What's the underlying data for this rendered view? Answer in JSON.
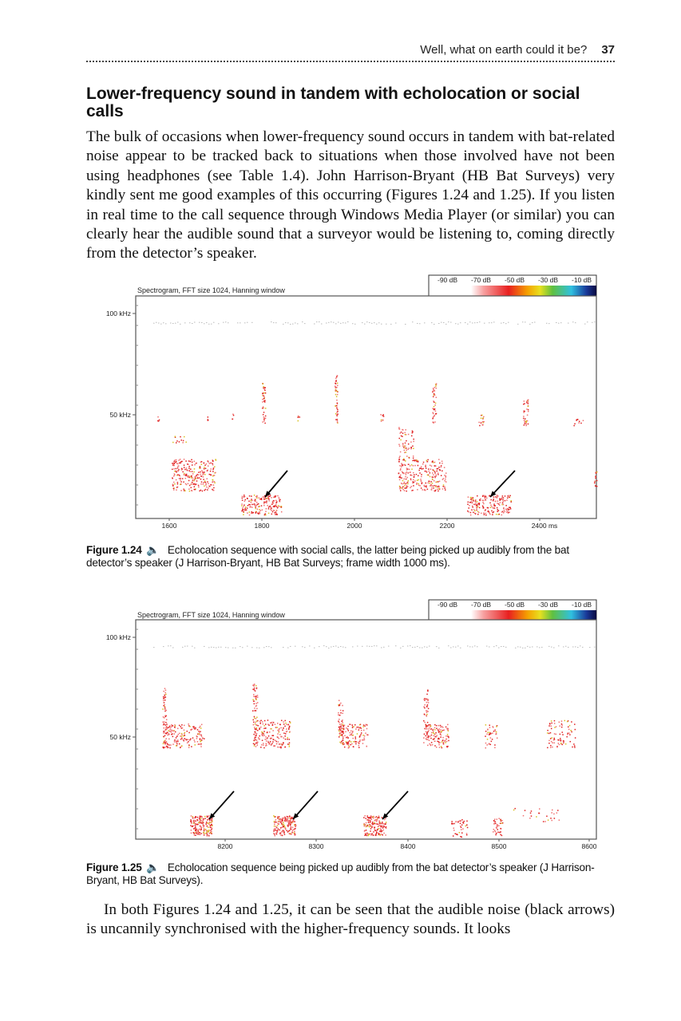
{
  "running_head": {
    "title": "Well, what on earth could it be?",
    "page_number": "37"
  },
  "section_heading": "Lower-frequency sound in tandem with echolocation or social calls",
  "paragraph_1": "The bulk of occasions when lower-frequency sound occurs in tandem with bat-related noise appear to be tracked back to situations when those involved have not been using headphones (see Table 1.4). John Harrison-Bryant (HB Bat Surveys) very kindly sent me good examples of this occurring (Figures 1.24 and 1.25). If you listen in real time to the call sequence through Windows Media Player (or similar) you can clearly hear the audible sound that a surveyor would be listening to, coming directly from the detector’s speaker.",
  "figures": [
    {
      "spectrogram_title": "Spectrogram, FFT size 1024, Hanning window",
      "legend": [
        "-90 dB",
        "-70 dB",
        "-50 dB",
        "-30 dB",
        "-10 dB"
      ],
      "y_ticks": [
        "100 kHz",
        "50 kHz"
      ],
      "x_ticks": [
        "1600",
        "1800",
        "2000",
        "2200",
        "2400 ms"
      ],
      "label": "Figure 1.24",
      "audio_icon": "speaker-icon",
      "caption": "Echolocation sequence with social calls, the latter being picked up audibly from the bat detector’s speaker (J Harrison-Bryant, HB Bat Surveys; frame width 1000 ms)."
    },
    {
      "spectrogram_title": "Spectrogram, FFT size 1024, Hanning window",
      "legend": [
        "-90 dB",
        "-70 dB",
        "-50 dB",
        "-30 dB",
        "-10 dB"
      ],
      "y_ticks": [
        "100 kHz",
        "50 kHz"
      ],
      "x_ticks": [
        "8200",
        "8300",
        "8400",
        "8500",
        "8600"
      ],
      "label": "Figure 1.25",
      "audio_icon": "speaker-icon",
      "caption": "Echolocation sequence being picked up audibly from the bat detector’s speaker (J Harrison-Bryant, HB Bat Surveys)."
    }
  ],
  "paragraph_2": "In both Figures 1.24 and 1.25, it can be seen that the audible noise (black arrows) is uncannily synchronised with the higher-frequency sounds. It looks",
  "colors": {
    "signal": "#e02020",
    "arrow": "#000000"
  }
}
